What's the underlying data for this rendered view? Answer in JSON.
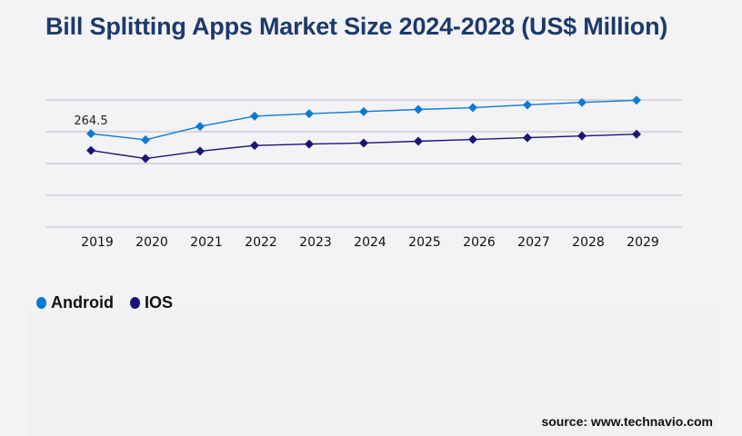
{
  "chart_data": {
    "type": "line",
    "title": "Bill Splitting Apps Market Size 2024-2028 (US$ Million)",
    "categories": [
      "2019",
      "2020",
      "2021",
      "2022",
      "2023",
      "2024",
      "2025",
      "2026",
      "2027",
      "2028",
      "2029"
    ],
    "series": [
      {
        "name": "Android",
        "color": "#0a7ad4",
        "values": [
          264.5,
          247,
          285,
          314,
          321,
          327,
          333,
          338,
          346,
          353,
          359
        ]
      },
      {
        "name": "IOS",
        "color": "#1a1478",
        "values": [
          217,
          194,
          215,
          231,
          235,
          238,
          243,
          248,
          253,
          258,
          263
        ]
      }
    ],
    "data_labels": [
      {
        "series": "Android",
        "category": "2019",
        "text": "264.5"
      }
    ],
    "ylim": [
      0,
      360
    ],
    "yticks": [
      0,
      90,
      180,
      270,
      360
    ],
    "grid": true,
    "marker": "diamond",
    "legend_position": "bottom-left"
  },
  "source": "source: www.technavio.com"
}
